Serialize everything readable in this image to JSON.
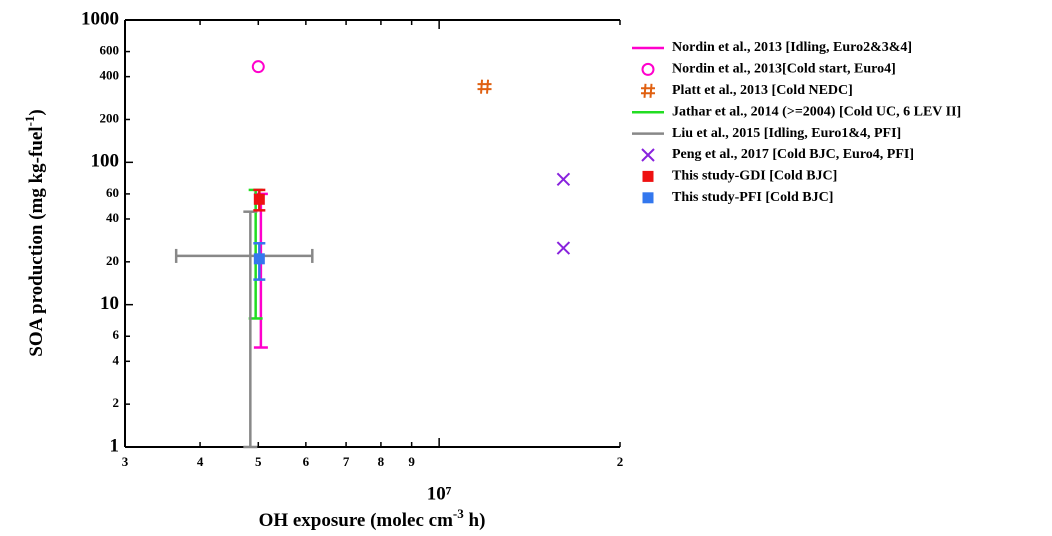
{
  "chart_data": {
    "type": "scatter",
    "xlabel": [
      "OH exposure (molec cm",
      "-3",
      " h)"
    ],
    "ylabel": [
      "SOA production (mg kg-fuel",
      "-1",
      ")"
    ],
    "xscale": "log",
    "yscale": "log",
    "xlim": [
      3000000,
      20000000
    ],
    "ylim": [
      1,
      1000
    ],
    "xticks": [
      {
        "value": 3000000,
        "label": "3"
      },
      {
        "value": 4000000,
        "label": "4"
      },
      {
        "value": 5000000,
        "label": "5"
      },
      {
        "value": 6000000,
        "label": "6"
      },
      {
        "value": 7000000,
        "label": "7"
      },
      {
        "value": 8000000,
        "label": "8"
      },
      {
        "value": 9000000,
        "label": "9"
      },
      {
        "value": 10000000,
        "label": "10⁷"
      },
      {
        "value": 20000000,
        "label": "2"
      }
    ],
    "yticks": [
      1,
      2,
      4,
      6,
      10,
      20,
      40,
      60,
      100,
      200,
      400,
      600,
      1000
    ],
    "legend": "right",
    "series": [
      {
        "name": "Nordin et al., 2013 [Idling, Euro2&3&4]",
        "color": "#ff00cc",
        "marker": "line",
        "x": [
          5050000
        ],
        "low": [
          5
        ],
        "high": [
          60
        ]
      },
      {
        "name": "Nordin et al., 2013[Cold start, Euro4]",
        "color": "#ff00cc",
        "marker": "circle",
        "x": [
          5000000
        ],
        "values": [
          470
        ]
      },
      {
        "name": "Platt et al., 2013 [Cold NEDC]",
        "color": "#e06010",
        "marker": "hash",
        "x": [
          11900000
        ],
        "values": [
          340
        ]
      },
      {
        "name": "Jathar et al., 2014 (>=2004) [Cold UC, 6 LEV II]",
        "color": "#22dd22",
        "marker": "line",
        "x": [
          4950000
        ],
        "low": [
          8
        ],
        "high": [
          64
        ]
      },
      {
        "name": "Liu et al., 2015 [Idling, Euro1&4, PFI]",
        "color": "#888888",
        "marker": "line",
        "x": [
          4850000
        ],
        "low": [
          1
        ],
        "high": [
          45
        ],
        "hline_y": [
          22
        ],
        "hline_low": [
          3650000
        ],
        "hline_high": [
          6150000
        ]
      },
      {
        "name": "Peng et al., 2017 [Cold BJC, Euro4, PFI]",
        "color": "#8822dd",
        "marker": "x",
        "x": [
          16100000,
          16100000
        ],
        "values": [
          76,
          25
        ]
      },
      {
        "name": "This study-GDI [Cold BJC]",
        "color": "#ee1111",
        "marker": "square",
        "x": [
          5020000
        ],
        "values": [
          55
        ],
        "yerr": [
          9
        ]
      },
      {
        "name": "This study-PFI [Cold BJC]",
        "color": "#3377ee",
        "marker": "square",
        "x": [
          5020000
        ],
        "values": [
          21
        ],
        "yerr": [
          6
        ]
      }
    ]
  }
}
